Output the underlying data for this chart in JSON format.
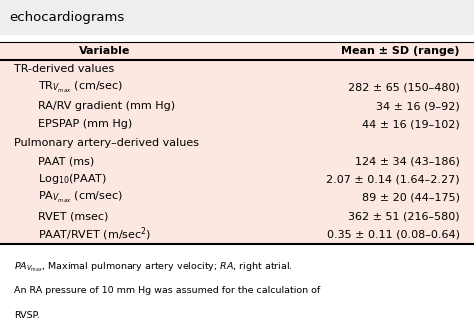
{
  "title": "echocardiograms",
  "col1_header": "Variable",
  "col2_header": "Mean ± SD (range)",
  "section1_header": "TR-derived values",
  "section2_header": "Pulmonary artery–derived values",
  "rows": [
    {
      "var": "TR$_{V_{max}}$ (cm/sec)",
      "val": "282 ± 65 (150–480)",
      "section": 1,
      "indent": true
    },
    {
      "var": "RA/RV gradient (mm Hg)",
      "val": "34 ± 16 (9–92)",
      "section": 1,
      "indent": true
    },
    {
      "var": "EPSPAP (mm Hg)",
      "val": "44 ± 16 (19–102)",
      "section": 1,
      "indent": true
    },
    {
      "var": "PAAT (ms)",
      "val": "124 ± 34 (43–186)",
      "section": 2,
      "indent": true
    },
    {
      "var": "Log$_{10}$(PAAT)",
      "val": "2.07 ± 0.14 (1.64–2.27)",
      "section": 2,
      "indent": true
    },
    {
      "var": "PA$_{V_{max}}$ (cm/sec)",
      "val": "89 ± 20 (44–175)",
      "section": 2,
      "indent": true
    },
    {
      "var": "RVET (msec)",
      "val": "362 ± 51 (216–580)",
      "section": 2,
      "indent": true
    },
    {
      "var": "PAAT/RVET (m/sec$^{2}$)",
      "val": "0.35 ± 0.11 (0.08–0.64)",
      "section": 2,
      "indent": true
    }
  ],
  "footnote1": "$\\mathit{PA}_{\\mathit{V}_{max}}$, Maximal pulmonary artery velocity; $\\mathit{RA}$, right atrial.",
  "footnote2": "An RA pressure of 10 mm Hg was assumed for the calculation of",
  "footnote3": "RVSP.",
  "bg_color": "#ffffff",
  "title_bg": "#eeeeee",
  "table_bg": "#fce8e0",
  "font_size": 8.0,
  "title_font_size": 9.5
}
